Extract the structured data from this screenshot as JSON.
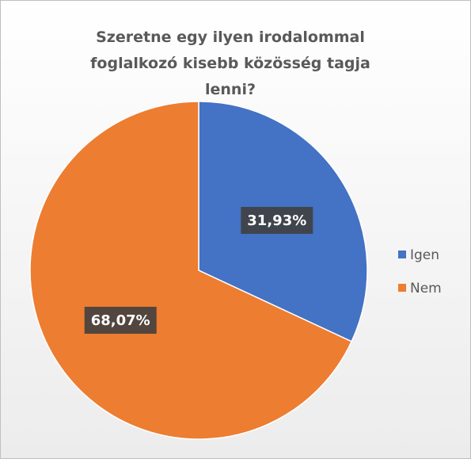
{
  "chart_data": {
    "type": "pie",
    "title": "Szeretne egy ilyen irodalommal foglalkozó kisebb közösség tagja lenni?",
    "categories": [
      "Igen",
      "Nem"
    ],
    "values": [
      31.93,
      68.07
    ],
    "value_labels": [
      "31,93%",
      "68,07%"
    ],
    "colors": [
      "#4472c4",
      "#ed7d31"
    ],
    "legend": "right"
  }
}
